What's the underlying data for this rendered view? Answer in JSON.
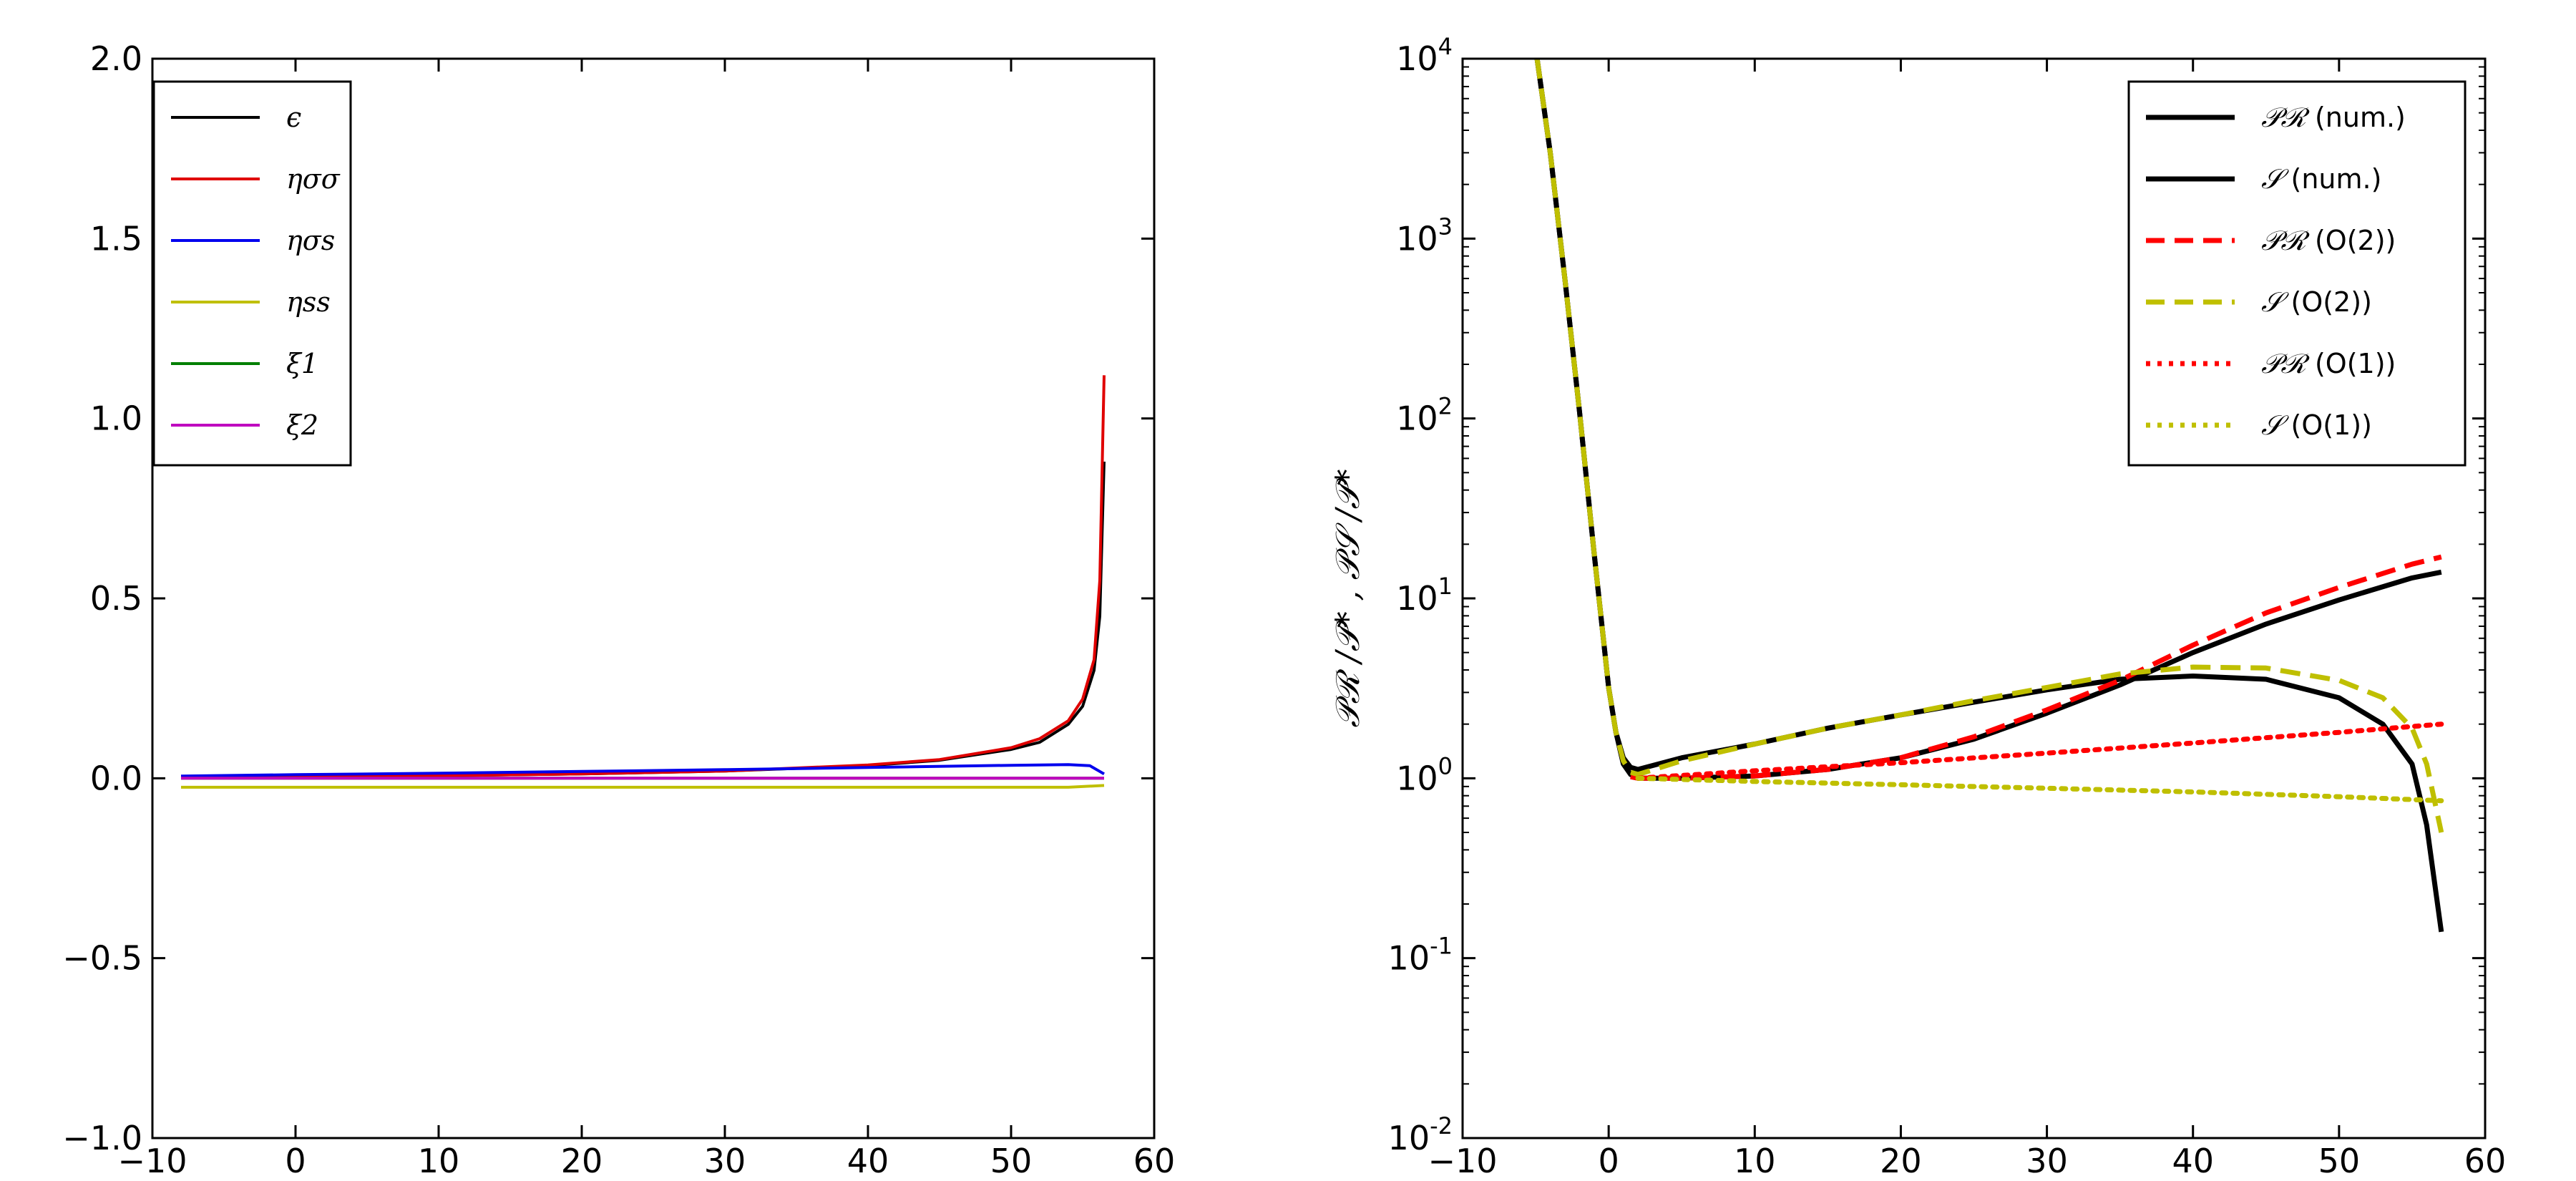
{
  "chart_data": [
    {
      "type": "line",
      "title": "",
      "xlabel": "",
      "ylabel": "",
      "xlim": [
        -10,
        60
      ],
      "ylim": [
        -1.0,
        2.0
      ],
      "xticks": [
        -10,
        0,
        10,
        20,
        30,
        40,
        50,
        60
      ],
      "xtick_labels": [
        "−10",
        "0",
        "10",
        "20",
        "30",
        "40",
        "50",
        "60"
      ],
      "yticks": [
        -1.0,
        -0.5,
        0.0,
        0.5,
        1.0,
        1.5,
        2.0
      ],
      "ytick_labels": [
        "−1.0",
        "−0.5",
        "0.0",
        "0.5",
        "1.0",
        "1.5",
        "2.0"
      ],
      "grid": false,
      "legend_position": "top-left",
      "series": [
        {
          "name": "ϵ",
          "color": "#000000",
          "style": "solid",
          "x": [
            -8,
            0,
            10,
            20,
            30,
            40,
            45,
            50,
            52,
            54,
            55,
            55.8,
            56.2,
            56.5
          ],
          "y": [
            0.002,
            0.004,
            0.007,
            0.012,
            0.02,
            0.035,
            0.05,
            0.08,
            0.1,
            0.15,
            0.2,
            0.3,
            0.45,
            0.88
          ]
        },
        {
          "name": "ησσ",
          "color": "#e00000",
          "style": "solid",
          "x": [
            -8,
            0,
            10,
            20,
            30,
            40,
            45,
            50,
            52,
            54,
            55,
            55.8,
            56.2,
            56.5
          ],
          "y": [
            0.002,
            0.004,
            0.007,
            0.012,
            0.02,
            0.037,
            0.052,
            0.085,
            0.11,
            0.16,
            0.22,
            0.33,
            0.55,
            1.12
          ]
        },
        {
          "name": "ησs",
          "color": "#0000ee",
          "style": "solid",
          "x": [
            -8,
            0,
            10,
            20,
            30,
            40,
            50,
            54,
            55.5,
            56.5
          ],
          "y": [
            0.006,
            0.01,
            0.014,
            0.019,
            0.024,
            0.03,
            0.036,
            0.038,
            0.035,
            0.012
          ]
        },
        {
          "name": "ηss",
          "color": "#bfbf00",
          "style": "solid",
          "x": [
            -8,
            0,
            10,
            20,
            30,
            40,
            50,
            54,
            56.5
          ],
          "y": [
            -0.025,
            -0.025,
            -0.025,
            -0.025,
            -0.025,
            -0.025,
            -0.025,
            -0.025,
            -0.02
          ]
        },
        {
          "name": "ξ1",
          "color": "#007f00",
          "style": "solid",
          "x": [
            -8,
            56.5
          ],
          "y": [
            0.0,
            0.0
          ]
        },
        {
          "name": "ξ2",
          "color": "#bf00bf",
          "style": "solid",
          "x": [
            -8,
            56.5
          ],
          "y": [
            0.0,
            0.0
          ]
        }
      ]
    },
    {
      "type": "line",
      "title": "",
      "xlabel": "",
      "ylabel": "𝒫ℛ /𝒫* ,  𝒫𝒮 /𝒫*",
      "ylog": true,
      "xlim": [
        -10,
        60
      ],
      "ylim": [
        0.01,
        10000
      ],
      "xticks": [
        -10,
        0,
        10,
        20,
        30,
        40,
        50,
        60
      ],
      "xtick_labels": [
        "−10",
        "0",
        "10",
        "20",
        "30",
        "40",
        "50",
        "60"
      ],
      "yticks": [
        0.01,
        0.1,
        1,
        10,
        100,
        1000,
        10000
      ],
      "ytick_labels": [
        {
          "b": "10",
          "e": "-2"
        },
        {
          "b": "10",
          "e": "-1"
        },
        {
          "b": "10",
          "e": "0"
        },
        {
          "b": "10",
          "e": "1"
        },
        {
          "b": "10",
          "e": "2"
        },
        {
          "b": "10",
          "e": "3"
        },
        {
          "b": "10",
          "e": "4"
        }
      ],
      "grid": false,
      "legend_position": "top-right",
      "series": [
        {
          "name": "𝒫ℛ",
          "suffix": " (num.)",
          "color": "#000000",
          "style": "solid",
          "x": [
            -4.9,
            -4,
            -3,
            -2,
            -1,
            0,
            0.5,
            1,
            1.5,
            2,
            3,
            5,
            10,
            15,
            20,
            25,
            30,
            35,
            40,
            45,
            50,
            55,
            57
          ],
          "y": [
            10000,
            3000,
            600,
            110,
            18,
            3.2,
            1.8,
            1.2,
            1.05,
            1.0,
            1.0,
            1.0,
            1.03,
            1.12,
            1.3,
            1.65,
            2.3,
            3.3,
            5.0,
            7.2,
            9.8,
            13.0,
            14.0
          ]
        },
        {
          "name": "𝒮",
          "suffix": " (num.)",
          "color": "#000000",
          "style": "solid",
          "x": [
            -4.9,
            -4,
            -3,
            -2,
            -1,
            0,
            0.5,
            1,
            1.5,
            2,
            5,
            10,
            15,
            20,
            25,
            30,
            35,
            40,
            45,
            50,
            53,
            55,
            56,
            57
          ],
          "y": [
            10000,
            3000,
            600,
            110,
            18,
            3.2,
            1.8,
            1.3,
            1.15,
            1.12,
            1.3,
            1.55,
            1.9,
            2.25,
            2.65,
            3.1,
            3.55,
            3.7,
            3.55,
            2.8,
            2.0,
            1.2,
            0.55,
            0.14
          ]
        },
        {
          "name": "𝒫ℛ",
          "suffix": " (O(2))",
          "color": "#ff0000",
          "style": "dashed",
          "x": [
            1.5,
            2,
            5,
            10,
            15,
            20,
            25,
            30,
            35,
            40,
            45,
            50,
            55,
            57
          ],
          "y": [
            1.02,
            1.0,
            1.0,
            1.03,
            1.12,
            1.3,
            1.7,
            2.4,
            3.5,
            5.5,
            8.3,
            11.5,
            15.5,
            17.0
          ]
        },
        {
          "name": "𝒮",
          "suffix": " (O(2))",
          "color": "#bfbf00",
          "style": "dashed",
          "x": [
            -4.9,
            -4,
            -3,
            -2,
            -1,
            0,
            0.5,
            1,
            1.5,
            2,
            5,
            10,
            15,
            20,
            25,
            30,
            35,
            40,
            45,
            50,
            53,
            55,
            56,
            57
          ],
          "y": [
            10000,
            3000,
            600,
            110,
            18,
            3.2,
            1.8,
            1.25,
            1.08,
            1.05,
            1.25,
            1.55,
            1.9,
            2.25,
            2.7,
            3.2,
            3.8,
            4.15,
            4.1,
            3.5,
            2.8,
            1.9,
            1.2,
            0.5
          ]
        },
        {
          "name": "𝒫ℛ",
          "suffix": " (O(1))",
          "color": "#ff0000",
          "style": "dotted",
          "x": [
            2,
            10,
            20,
            30,
            40,
            50,
            57
          ],
          "y": [
            1.0,
            1.1,
            1.22,
            1.38,
            1.57,
            1.8,
            2.0
          ]
        },
        {
          "name": "𝒮",
          "suffix": " (O(1))",
          "color": "#bfbf00",
          "style": "dotted",
          "x": [
            2,
            10,
            20,
            30,
            40,
            50,
            57
          ],
          "y": [
            1.0,
            0.96,
            0.92,
            0.88,
            0.84,
            0.79,
            0.75
          ]
        }
      ]
    }
  ]
}
